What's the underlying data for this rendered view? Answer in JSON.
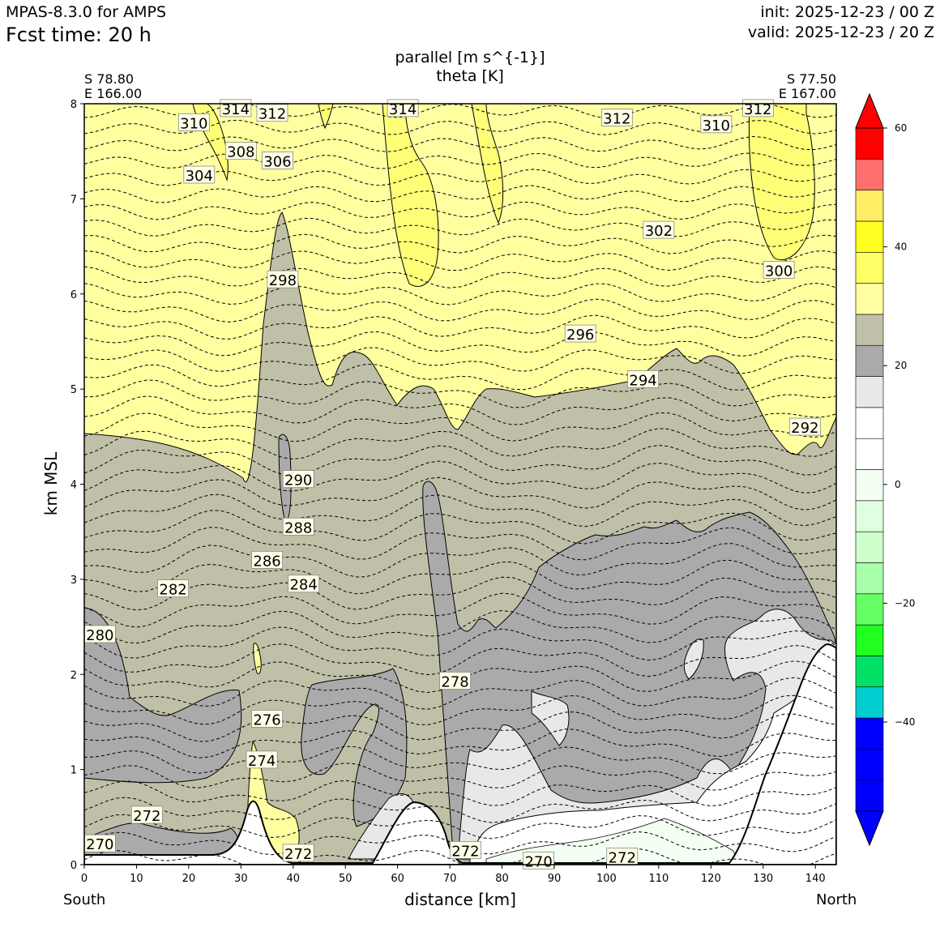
{
  "header": {
    "model": "MPAS-8.3.0 for AMPS",
    "fcst": "Fcst time:   20 h",
    "init": "init: 2025-12-23 / 00 Z",
    "valid": "valid: 2025-12-23 / 20 Z"
  },
  "titles": {
    "line1": "parallel [m s^{-1}]",
    "line2": "theta [K]"
  },
  "endpoints": {
    "left_lat": "S 78.80",
    "left_lon": "E 166.00",
    "right_lat": "S 77.50",
    "right_lon": "E 167.00"
  },
  "directions": {
    "left": "South",
    "right": "North"
  },
  "chart_data": {
    "type": "heatmap",
    "xlabel": "distance [km]",
    "ylabel": "km MSL",
    "xlim": [
      0,
      144
    ],
    "ylim": [
      0,
      8
    ],
    "xticks": [
      0,
      10,
      20,
      30,
      40,
      50,
      60,
      70,
      80,
      90,
      100,
      110,
      120,
      130,
      140
    ],
    "yticks": [
      0,
      1,
      2,
      3,
      4,
      5,
      6,
      7,
      8
    ],
    "colorbar": {
      "levels": [
        -55,
        -50,
        -45,
        -40,
        -35,
        -30,
        -25,
        -20,
        -15,
        -10,
        -5,
        0,
        5,
        10,
        15,
        20,
        25,
        30,
        35,
        40,
        45,
        50,
        55,
        60
      ],
      "colors": [
        "#0000ff",
        "#0000ff",
        "#0000ff",
        "#00cdcd",
        "#00e066",
        "#22ff22",
        "#66ff66",
        "#aaffaa",
        "#ccffcc",
        "#e0ffe0",
        "#f4fff4",
        "#ffffff",
        "#ffffff",
        "#e8e8e8",
        "#aaaaaa",
        "#c0c0a8",
        "#ffffa0",
        "#ffff66",
        "#ffff22",
        "#ffee66",
        "#ff6f6f",
        "#ff0000"
      ],
      "ticks": [
        -40,
        -20,
        0,
        20,
        40,
        60
      ],
      "tick_labels": [
        "−40",
        "−20",
        "0",
        "20",
        "40",
        "60"
      ]
    },
    "theta_contour_labels": [
      {
        "value": "310",
        "x": 21,
        "y": 7.8
      },
      {
        "value": "314",
        "x": 29,
        "y": 7.95
      },
      {
        "value": "312",
        "x": 36,
        "y": 7.9
      },
      {
        "value": "308",
        "x": 30,
        "y": 7.5
      },
      {
        "value": "306",
        "x": 37,
        "y": 7.4
      },
      {
        "value": "304",
        "x": 22,
        "y": 7.25
      },
      {
        "value": "314",
        "x": 61,
        "y": 7.95
      },
      {
        "value": "312",
        "x": 102,
        "y": 7.85
      },
      {
        "value": "310",
        "x": 121,
        "y": 7.78
      },
      {
        "value": "312",
        "x": 129,
        "y": 7.95
      },
      {
        "value": "302",
        "x": 110,
        "y": 6.67
      },
      {
        "value": "300",
        "x": 133,
        "y": 6.25
      },
      {
        "value": "298",
        "x": 38,
        "y": 6.15
      },
      {
        "value": "296",
        "x": 95,
        "y": 5.58
      },
      {
        "value": "294",
        "x": 107,
        "y": 5.1
      },
      {
        "value": "292",
        "x": 138,
        "y": 4.6
      },
      {
        "value": "290",
        "x": 41,
        "y": 4.05
      },
      {
        "value": "288",
        "x": 41,
        "y": 3.55
      },
      {
        "value": "286",
        "x": 35,
        "y": 3.2
      },
      {
        "value": "284",
        "x": 42,
        "y": 2.95
      },
      {
        "value": "282",
        "x": 17,
        "y": 2.9
      },
      {
        "value": "280",
        "x": 3,
        "y": 2.42
      },
      {
        "value": "278",
        "x": 71,
        "y": 1.93
      },
      {
        "value": "276",
        "x": 35,
        "y": 1.53
      },
      {
        "value": "274",
        "x": 34,
        "y": 1.1
      },
      {
        "value": "272",
        "x": 12,
        "y": 0.52
      },
      {
        "value": "270",
        "x": 3,
        "y": 0.22
      },
      {
        "value": "272",
        "x": 41,
        "y": 0.12
      },
      {
        "value": "272",
        "x": 73,
        "y": 0.15
      },
      {
        "value": "270",
        "x": 87,
        "y": 0.04
      },
      {
        "value": "272",
        "x": 103,
        "y": 0.08
      }
    ]
  }
}
